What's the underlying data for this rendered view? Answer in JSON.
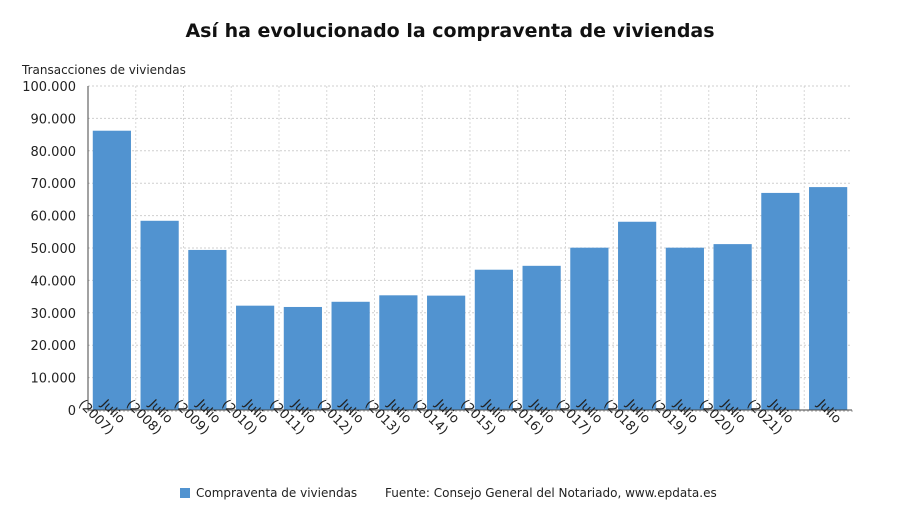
{
  "chart_data": {
    "type": "bar",
    "title": "Así ha evolucionado la compraventa de viviendas",
    "ylabel": "Transacciones de viviendas",
    "xlabel": "",
    "ylim": [
      0,
      100000
    ],
    "yticks": [
      "0",
      "10.000",
      "20.000",
      "30.000",
      "40.000",
      "50.000",
      "60.000",
      "70.000",
      "80.000",
      "90.000",
      "100.000"
    ],
    "categories": [
      [
        "Julio",
        "(2007)"
      ],
      [
        "Julio",
        "(2008)"
      ],
      [
        "Julio",
        "(2009)"
      ],
      [
        "Julio",
        "(2010)"
      ],
      [
        "Julio",
        "(2011)"
      ],
      [
        "Julio",
        "(2012)"
      ],
      [
        "Julio",
        "(2013)"
      ],
      [
        "Julio",
        "(2014)"
      ],
      [
        "Julio",
        "(2015)"
      ],
      [
        "Julio",
        "(2016)"
      ],
      [
        "Julio",
        "(2017)"
      ],
      [
        "Julio",
        "(2018)"
      ],
      [
        "Julio",
        "(2019)"
      ],
      [
        "Julio",
        "(2020)"
      ],
      [
        "Julio",
        "(2021)"
      ],
      [
        "Julio"
      ]
    ],
    "series": [
      {
        "name": "Compraventa de viviendas",
        "color": "#5193d0",
        "values": [
          86200,
          58400,
          49400,
          32200,
          31800,
          33400,
          35400,
          35300,
          43300,
          44500,
          50100,
          58100,
          50100,
          51200,
          67000,
          68800
        ]
      }
    ],
    "grid": true,
    "legend": "bottom"
  },
  "source": "Fuente: Consejo General del Notariado, www.epdata.es"
}
